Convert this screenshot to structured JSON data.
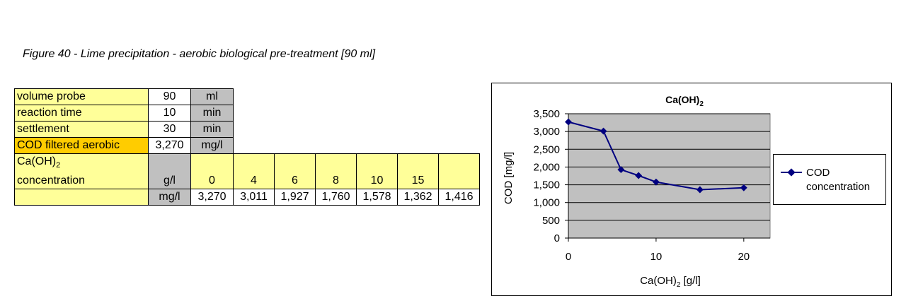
{
  "caption": "Figure 40 - Lime precipitation - aerobic biological pre-treatment [90 ml]",
  "table": {
    "rows": [
      {
        "label": "volume probe",
        "value": "90",
        "unit": "ml"
      },
      {
        "label": "reaction time",
        "value": "10",
        "unit": "min"
      },
      {
        "label": "settlement",
        "value": "30",
        "unit": "min"
      },
      {
        "label": "COD filtered aerobic",
        "value": "3,270",
        "unit": "mg/l"
      }
    ],
    "conc_label_1": "Ca(OH)",
    "conc_label_sub": "2",
    "conc_label_2": "concentration",
    "conc_unit": "g/l",
    "conc_values": [
      "0",
      "4",
      "6",
      "8",
      "10",
      "15",
      ""
    ],
    "cod_unit": "mg/l",
    "cod_values": [
      "3,270",
      "3,011",
      "1,927",
      "1,760",
      "1,578",
      "1,362",
      "1,416"
    ]
  },
  "colors": {
    "label_bg": "#ffff99",
    "highlight_bg": "#ffcc00",
    "unit_bg": "#c0c0c0",
    "plot_bg": "#c0c0c0",
    "series": "#000080"
  },
  "chart_data": {
    "type": "line",
    "title": "Ca(OH)",
    "title_sub": "2",
    "xlabel": "Ca(OH)",
    "xlabel_sub": "2",
    "xlabel_suffix": " [g/l]",
    "ylabel": "COD [mg/l]",
    "xlim": [
      0,
      23
    ],
    "ylim": [
      0,
      3500
    ],
    "x_ticks": [
      0,
      10,
      20
    ],
    "y_ticks": [
      0,
      500,
      1000,
      1500,
      2000,
      2500,
      3000,
      3500
    ],
    "y_tick_labels": [
      "0",
      "500",
      "1,000",
      "1,500",
      "2,000",
      "2,500",
      "3,000",
      "3,500"
    ],
    "grid": "horizontal",
    "legend_position": "right",
    "series": [
      {
        "name": "COD concentration",
        "name_line1": "COD",
        "name_line2": "concentration",
        "x": [
          0,
          4,
          6,
          8,
          10,
          15,
          20
        ],
        "y": [
          3270,
          3011,
          1927,
          1760,
          1578,
          1362,
          1416
        ]
      }
    ]
  }
}
